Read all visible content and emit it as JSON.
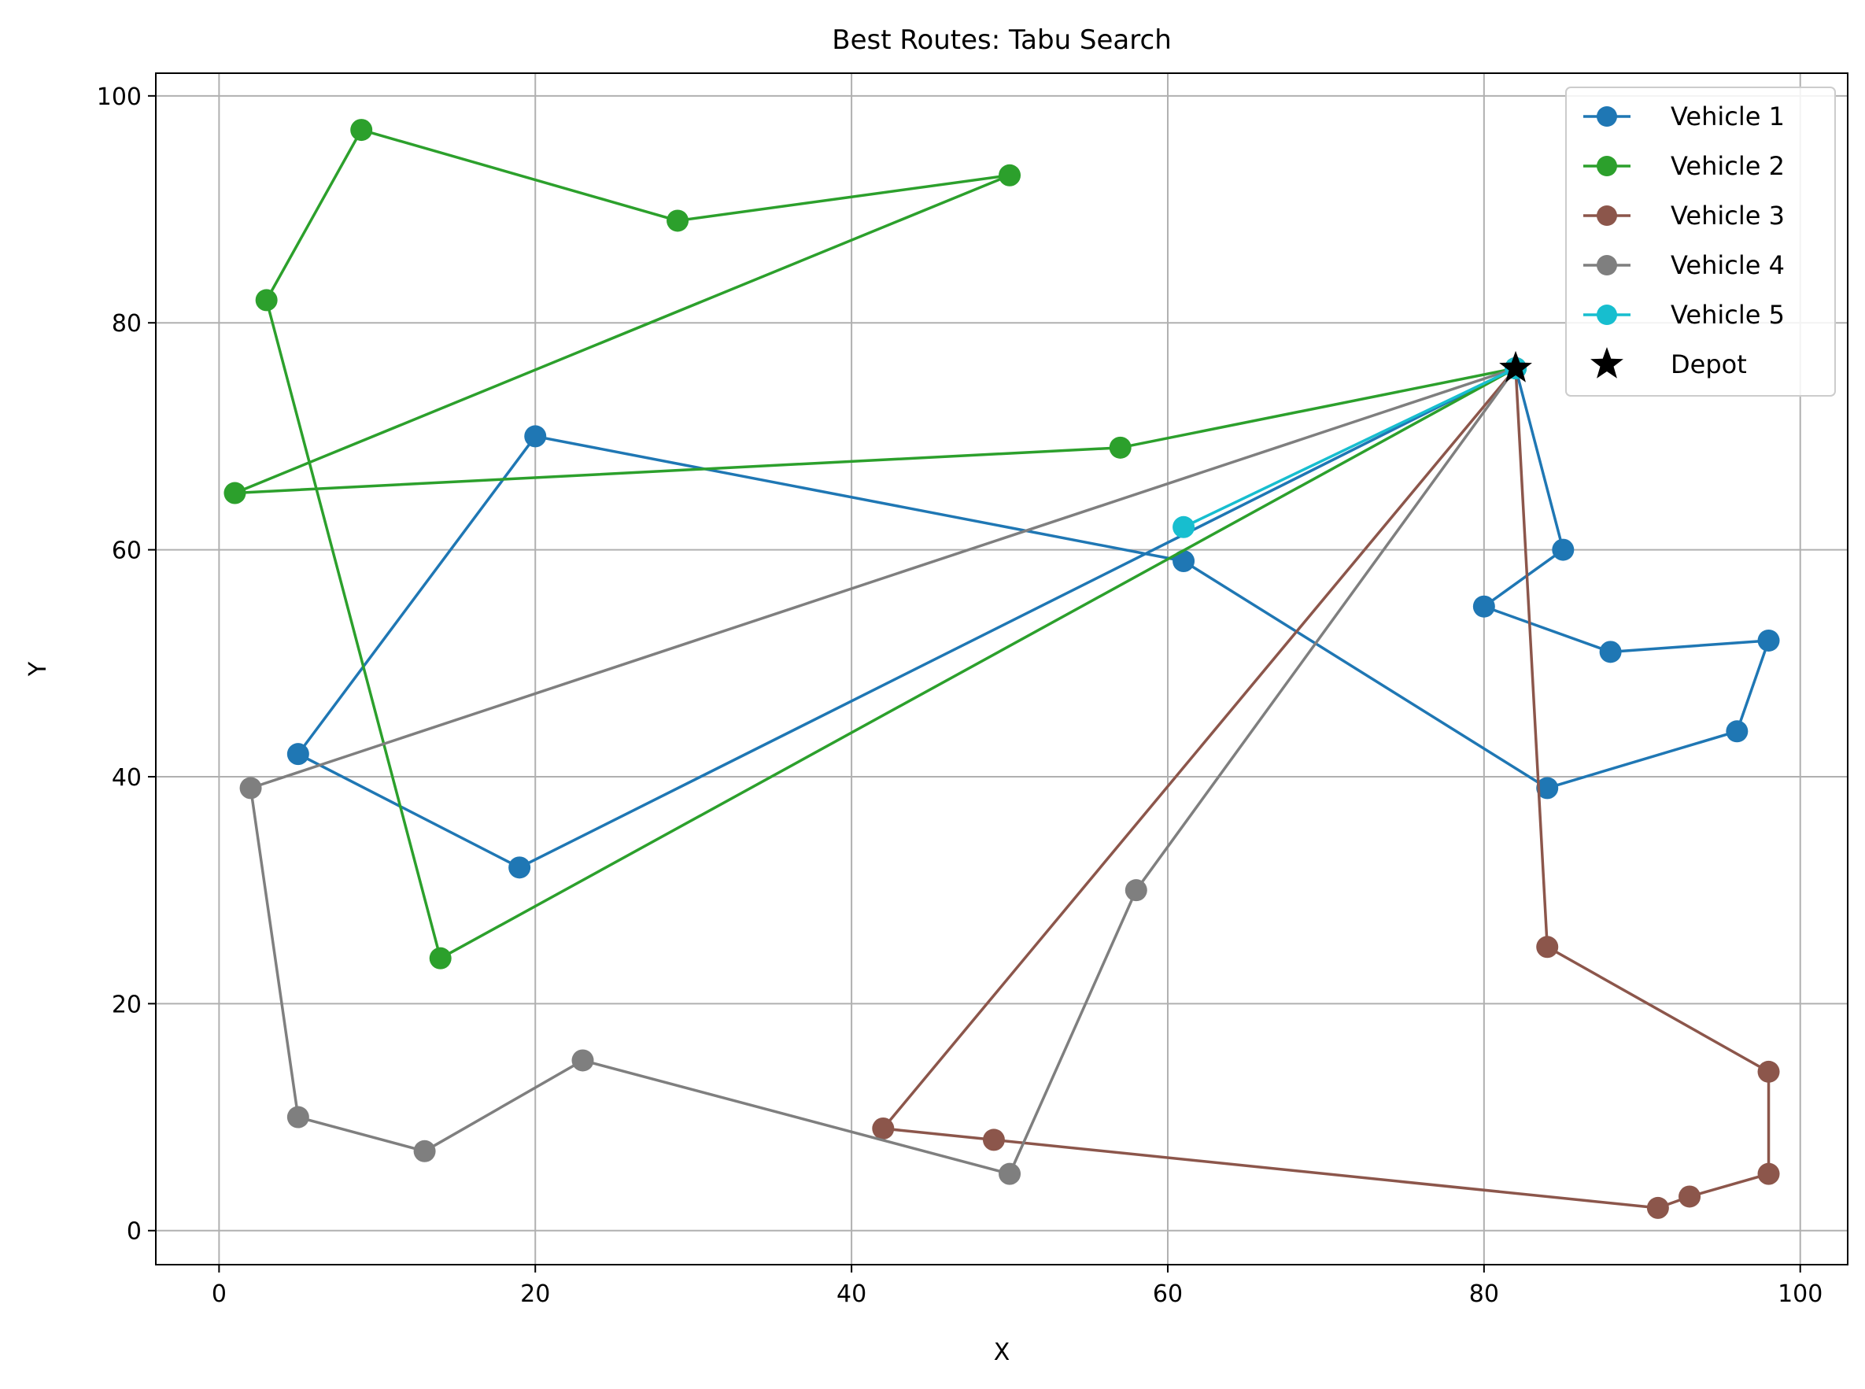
{
  "chart_data": {
    "type": "line",
    "title": "Best Routes: Tabu Search",
    "xlabel": "X",
    "ylabel": "Y",
    "xlim": [
      -4,
      103
    ],
    "ylim": [
      -3,
      102
    ],
    "xticks": [
      0,
      20,
      40,
      60,
      80,
      100
    ],
    "yticks": [
      0,
      20,
      40,
      60,
      80,
      100
    ],
    "grid": true,
    "legend_position": "top-right",
    "depot": {
      "name": "Depot",
      "x": 82,
      "y": 76,
      "color": "#000000"
    },
    "series": [
      {
        "name": "Vehicle 1",
        "color": "#1f77b4",
        "points": [
          [
            82,
            76
          ],
          [
            85,
            60
          ],
          [
            80,
            55
          ],
          [
            88,
            51
          ],
          [
            98,
            52
          ],
          [
            96,
            44
          ],
          [
            84,
            39
          ],
          [
            61,
            59
          ],
          [
            20,
            70
          ],
          [
            5,
            42
          ],
          [
            19,
            32
          ],
          [
            82,
            76
          ]
        ]
      },
      {
        "name": "Vehicle 2",
        "color": "#2ca02c",
        "points": [
          [
            82,
            76
          ],
          [
            57,
            69
          ],
          [
            1,
            65
          ],
          [
            50,
            93
          ],
          [
            29,
            89
          ],
          [
            9,
            97
          ],
          [
            3,
            82
          ],
          [
            14,
            24
          ],
          [
            82,
            76
          ]
        ]
      },
      {
        "name": "Vehicle 3",
        "color": "#8c564b",
        "points": [
          [
            82,
            76
          ],
          [
            84,
            25
          ],
          [
            98,
            14
          ],
          [
            98,
            5
          ],
          [
            93,
            3
          ],
          [
            91,
            2
          ],
          [
            49,
            8
          ],
          [
            42,
            9
          ],
          [
            82,
            76
          ]
        ]
      },
      {
        "name": "Vehicle 4",
        "color": "#7f7f7f",
        "points": [
          [
            82,
            76
          ],
          [
            2,
            39
          ],
          [
            5,
            10
          ],
          [
            13,
            7
          ],
          [
            23,
            15
          ],
          [
            50,
            5
          ],
          [
            58,
            30
          ],
          [
            82,
            76
          ]
        ]
      },
      {
        "name": "Vehicle 5",
        "color": "#17becf",
        "points": [
          [
            82,
            76
          ],
          [
            61,
            62
          ],
          [
            82,
            76
          ]
        ]
      }
    ]
  }
}
